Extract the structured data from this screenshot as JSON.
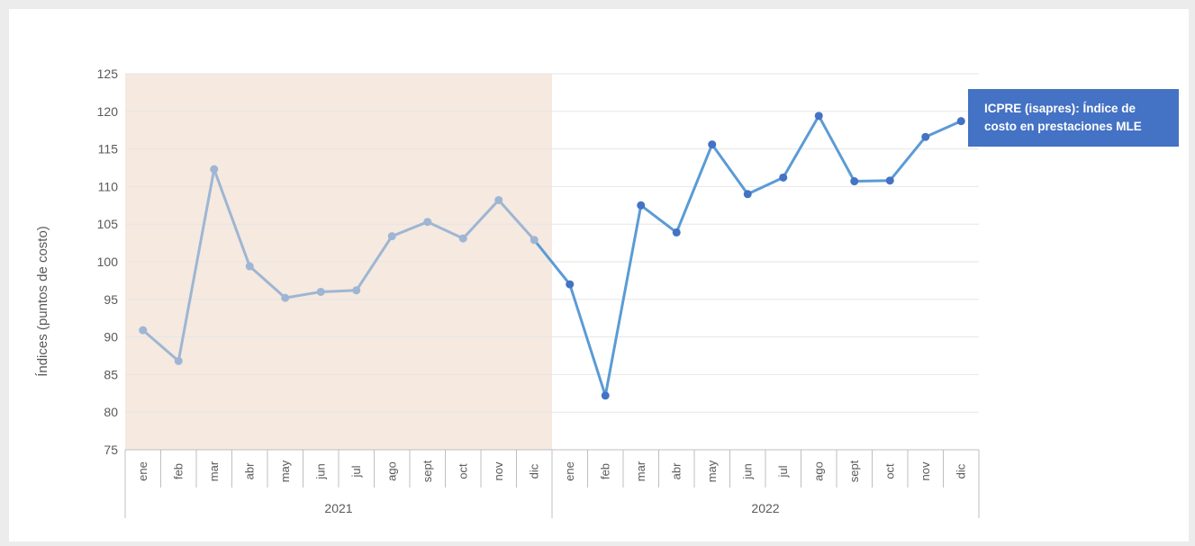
{
  "chart_data": {
    "type": "line",
    "title": "",
    "ylabel": "Índices (puntos de costo)",
    "xlabel": "",
    "ylim": [
      75,
      125
    ],
    "y_ticks": [
      75,
      80,
      85,
      90,
      95,
      100,
      105,
      110,
      115,
      120,
      125
    ],
    "grid": true,
    "months": [
      "ene",
      "feb",
      "mar",
      "abr",
      "may",
      "jun",
      "jul",
      "ago",
      "sept",
      "oct",
      "nov",
      "dic"
    ],
    "years": [
      "2021",
      "2022"
    ],
    "highlighted_period": "2021",
    "annotation": "ICPRE (isapres): Índice de costo en prestaciones MLE",
    "series": [
      {
        "year": "2021",
        "color": "#9eb6d3",
        "values": [
          90.9,
          86.8,
          112.3,
          99.4,
          95.2,
          96.0,
          96.2,
          103.4,
          105.3,
          103.1,
          108.2,
          102.9
        ]
      },
      {
        "year": "2022",
        "color": "#5b9bd5",
        "marker_color": "#4472c4",
        "values": [
          97.0,
          82.2,
          107.5,
          103.9,
          115.6,
          109.0,
          111.2,
          119.4,
          110.7,
          110.8,
          116.6,
          118.7
        ]
      }
    ],
    "colors": {
      "highlight_band": "#f5e9e0",
      "legend_background": "#4472c4",
      "gridline": "#e6e6e6",
      "axis_text": "#595959"
    }
  }
}
